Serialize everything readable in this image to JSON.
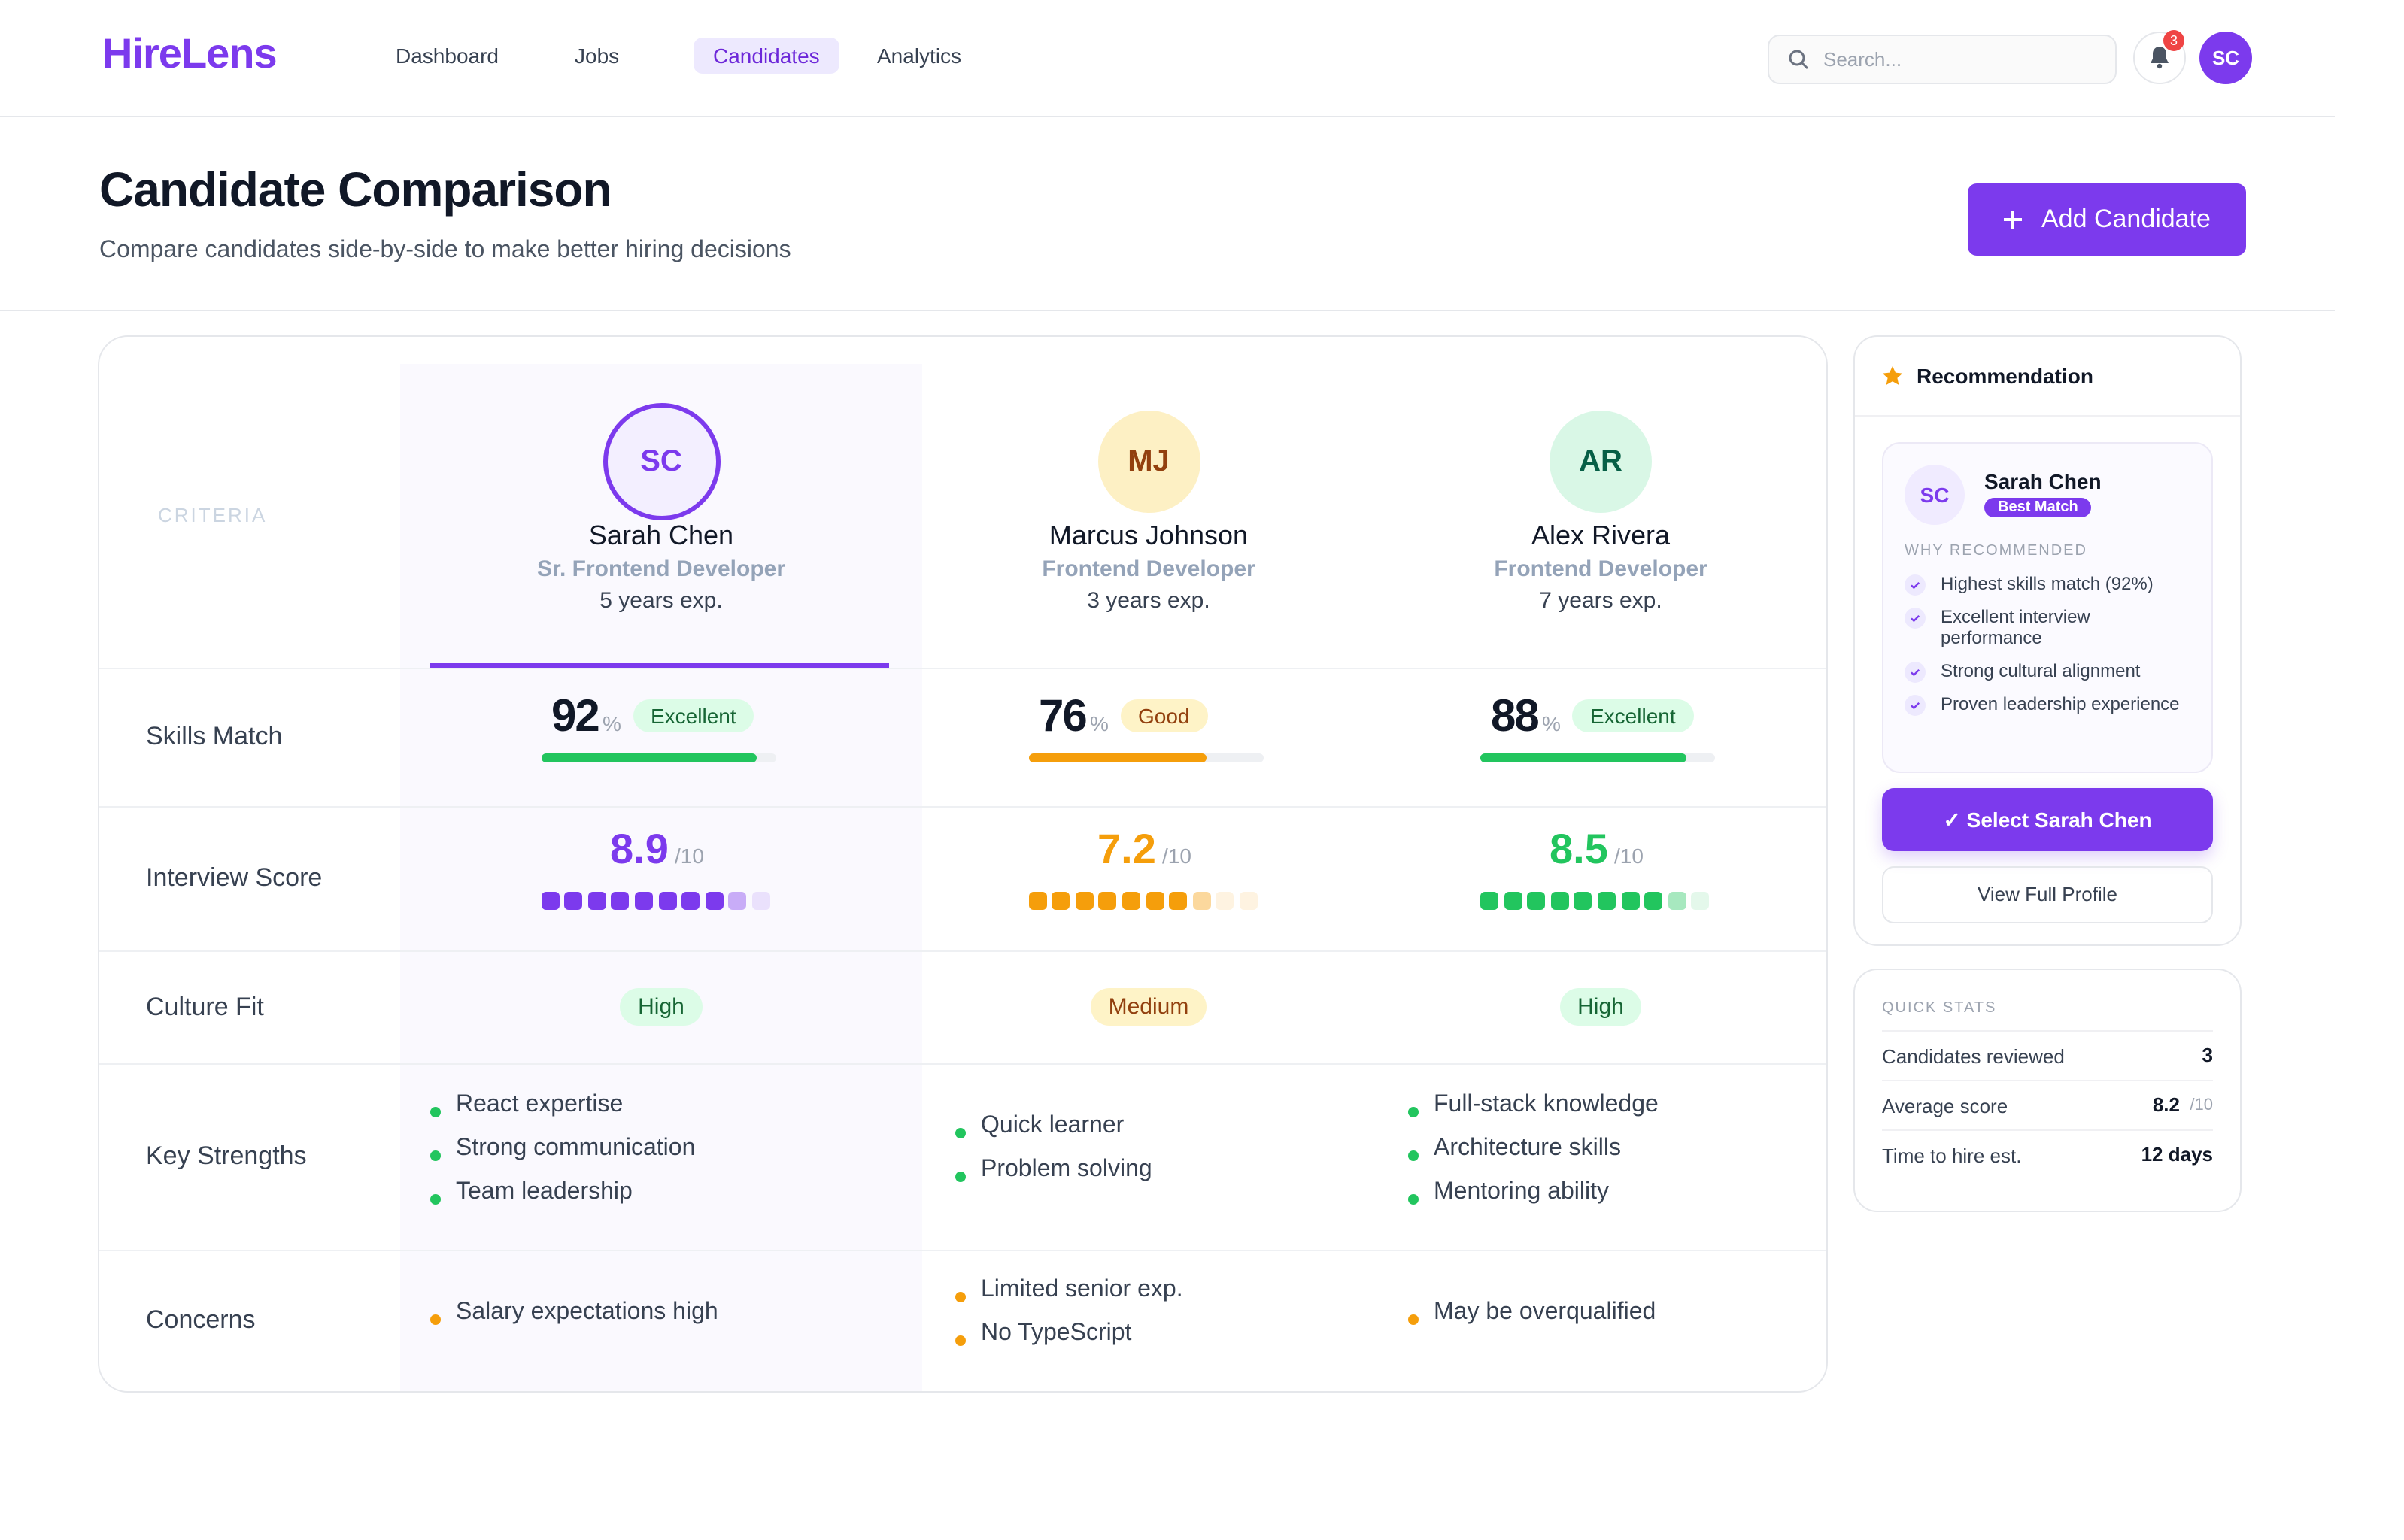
{
  "nav": {
    "logo": "HireLens",
    "links": [
      "Dashboard",
      "Jobs",
      "Candidates",
      "Analytics"
    ],
    "active_link": 2,
    "search_placeholder": "Search...",
    "notification_count": "3",
    "user_initials": "SC"
  },
  "header": {
    "title": "Candidate Comparison",
    "subtitle": "Compare candidates side-by-side to make better hiring decisions",
    "button": "Add Candidate"
  },
  "comparison": {
    "criteria_label": "CRITERIA",
    "rows": [
      "Skills Match",
      "Interview Score",
      "Culture Fit",
      "Key Strengths",
      "Concerns"
    ],
    "candidates": [
      {
        "initials": "SC",
        "name": "Sarah Chen",
        "role": "Sr. Frontend Developer",
        "experience": "5 years exp.",
        "color": "#7c3aed",
        "avatar_bg": "#f3efff",
        "skills_match": 92,
        "skills_unit": "%",
        "skills_label": "Excellent",
        "skills_color": "#22c55e",
        "interview_score": 8.9,
        "interview_scale": "/10",
        "culture_fit": "High",
        "strengths": [
          "React expertise",
          "Strong communication",
          "Team leadership"
        ],
        "concerns": [
          "Salary expectations high"
        ]
      },
      {
        "initials": "MJ",
        "name": "Marcus Johnson",
        "role": "Frontend Developer",
        "experience": "3 years exp.",
        "color": "#f59e0b",
        "avatar_bg": "#fdf0c4",
        "skills_match": 76,
        "skills_unit": "%",
        "skills_label": "Good",
        "skills_color": "#f59e0b",
        "interview_score": 7.2,
        "interview_scale": "/10",
        "culture_fit": "Medium",
        "strengths": [
          "Quick learner",
          "Problem solving"
        ],
        "concerns": [
          "Limited senior exp.",
          "No TypeScript"
        ]
      },
      {
        "initials": "AR",
        "name": "Alex Rivera",
        "role": "Frontend Developer",
        "experience": "7 years exp.",
        "color": "#22c55e",
        "avatar_bg": "#d9f7e6",
        "skills_match": 88,
        "skills_unit": "%",
        "skills_label": "Excellent",
        "skills_color": "#22c55e",
        "interview_score": 8.5,
        "interview_scale": "/10",
        "culture_fit": "High",
        "strengths": [
          "Full-stack knowledge",
          "Architecture skills",
          "Mentoring ability"
        ],
        "concerns": [
          "May be overqualified"
        ]
      }
    ]
  },
  "recommendation": {
    "title": "Recommendation",
    "initials": "SC",
    "name": "Sarah Chen",
    "badge": "Best Match",
    "why_label": "WHY RECOMMENDED",
    "reasons": [
      "Highest skills match (92%)",
      "Excellent interview performance",
      "Strong cultural alignment",
      "Proven leadership experience"
    ],
    "primary_button": "✓ Select Sarah Chen",
    "secondary_button": "View Full Profile"
  },
  "quick_stats": {
    "title": "QUICK STATS",
    "rows": [
      {
        "label": "Candidates reviewed",
        "value": "3"
      },
      {
        "label": "Average score",
        "value": "8.2",
        "unit": "/10"
      },
      {
        "label": "Time to hire est.",
        "value": "12 days"
      }
    ]
  }
}
